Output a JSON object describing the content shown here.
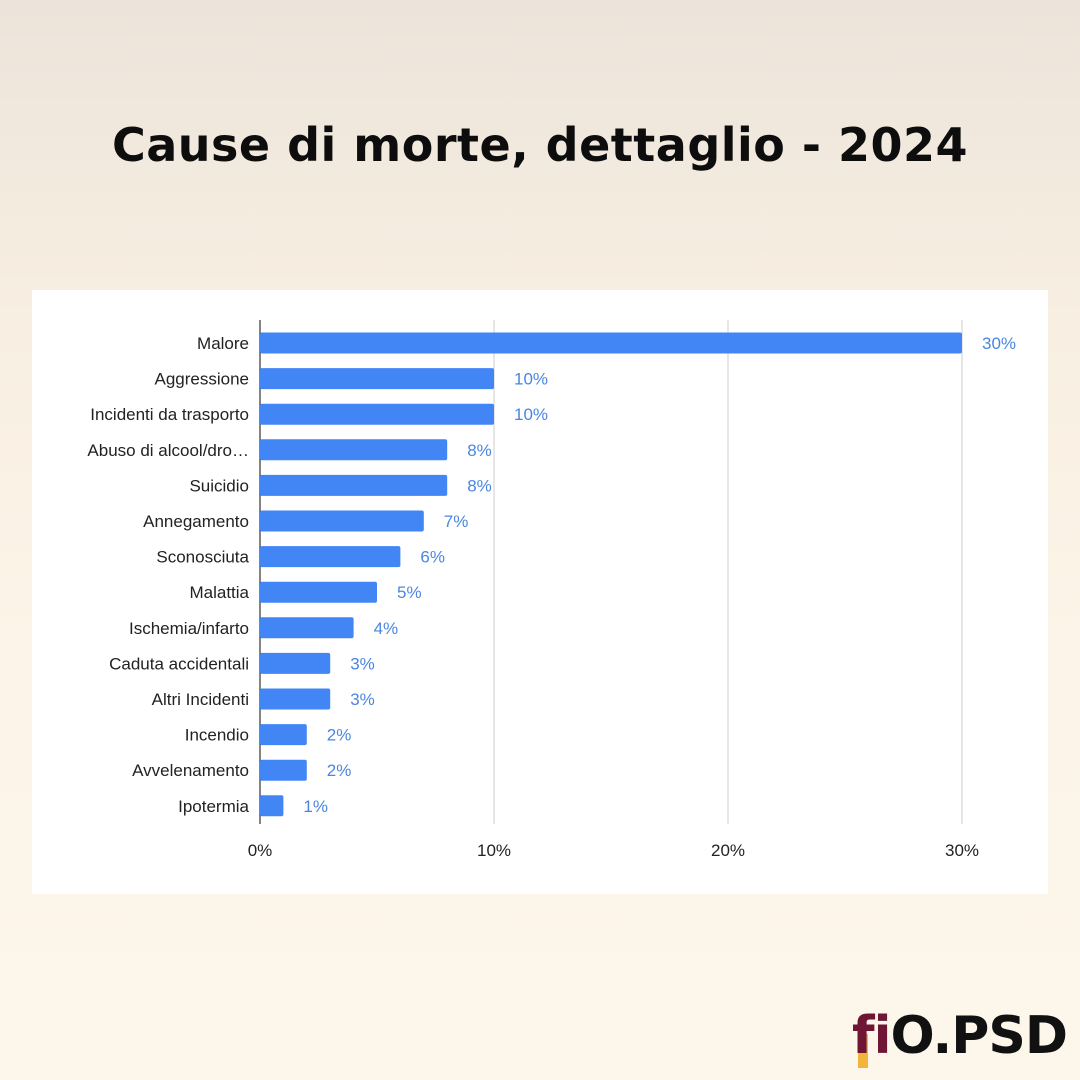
{
  "header": {
    "title": "Cause di morte, dettaglio - 2024"
  },
  "logo": {
    "fi": "fi",
    "rest": "O.PSD",
    "colors": {
      "fi": "#6e1633",
      "accent": "#f2b43a",
      "text": "#111111"
    }
  },
  "chart_data": {
    "type": "bar",
    "orientation": "horizontal",
    "title": "",
    "xlabel": "",
    "ylabel": "",
    "categories": [
      "Malore",
      "Aggressione",
      "Incidenti da trasporto",
      "Abuso di alcool/dro…",
      "Suicidio",
      "Annegamento",
      "Sconosciuta",
      "Malattia",
      "Ischemia/infarto",
      "Caduta accidentali",
      "Altri Incidenti",
      "Incendio",
      "Avvelenamento",
      "Ipotermia"
    ],
    "values": [
      30,
      10,
      10,
      8,
      8,
      7,
      6,
      5,
      4,
      3,
      3,
      2,
      2,
      1
    ],
    "value_labels": [
      "30%",
      "10%",
      "10%",
      "8%",
      "8%",
      "7%",
      "6%",
      "5%",
      "4%",
      "3%",
      "3%",
      "2%",
      "2%",
      "1%"
    ],
    "xlim": [
      0,
      30
    ],
    "ticks": [
      0,
      10,
      20,
      30
    ],
    "tick_labels": [
      "0%",
      "10%",
      "20%",
      "30%"
    ],
    "grid": "vertical",
    "bar_color": "#4286f5",
    "label_color": "#4a86e0"
  }
}
